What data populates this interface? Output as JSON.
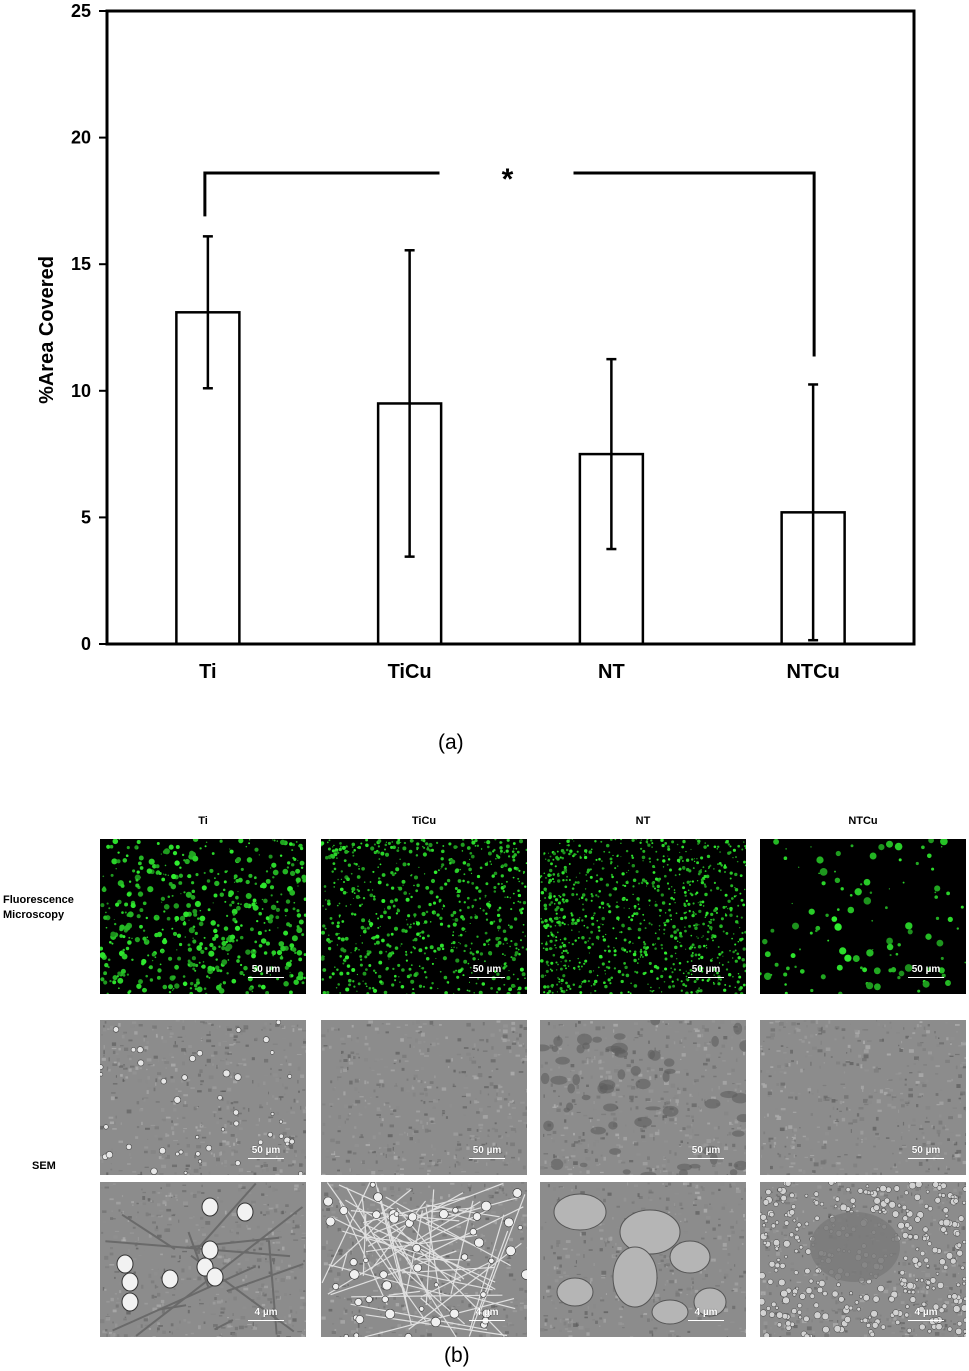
{
  "chart_data": {
    "type": "bar",
    "categories": [
      "Ti",
      "TiCu",
      "NT",
      "NTCu"
    ],
    "values": [
      13.1,
      9.5,
      7.5,
      5.2
    ],
    "errors": [
      3.0,
      6.05,
      3.75,
      5.05
    ],
    "ylabel": "%Area Covered",
    "xlabel": "",
    "ylim": [
      0,
      25
    ],
    "yticks": [
      0,
      5,
      10,
      15,
      20,
      25
    ],
    "bar_fill": "#ffffff",
    "bar_stroke": "#000000",
    "significance": {
      "from": "Ti",
      "to": "NTCu",
      "label": "*",
      "y": 18.6
    }
  },
  "captions": {
    "a": "(a)",
    "b": "(b)"
  },
  "panel_b": {
    "columns": [
      "Ti",
      "TiCu",
      "NT",
      "NTCu"
    ],
    "rows": {
      "fluorescence": "Fluorescence\nMicroscopy",
      "sem": "SEM"
    },
    "scale_bars": {
      "fluorescence": [
        "50 µm",
        "50 µm",
        "50 µm",
        "50 µm"
      ],
      "sem_low": [
        "50 µm",
        "50 µm",
        "50 µm",
        "50 µm"
      ],
      "sem_high": [
        "4 µm",
        "4 µm",
        "4 µm",
        "4 µm"
      ]
    },
    "colors": {
      "fluor_bg": "#000000",
      "fluor_cell": "#33d433",
      "sem_bg": "#8c8c8c"
    }
  }
}
